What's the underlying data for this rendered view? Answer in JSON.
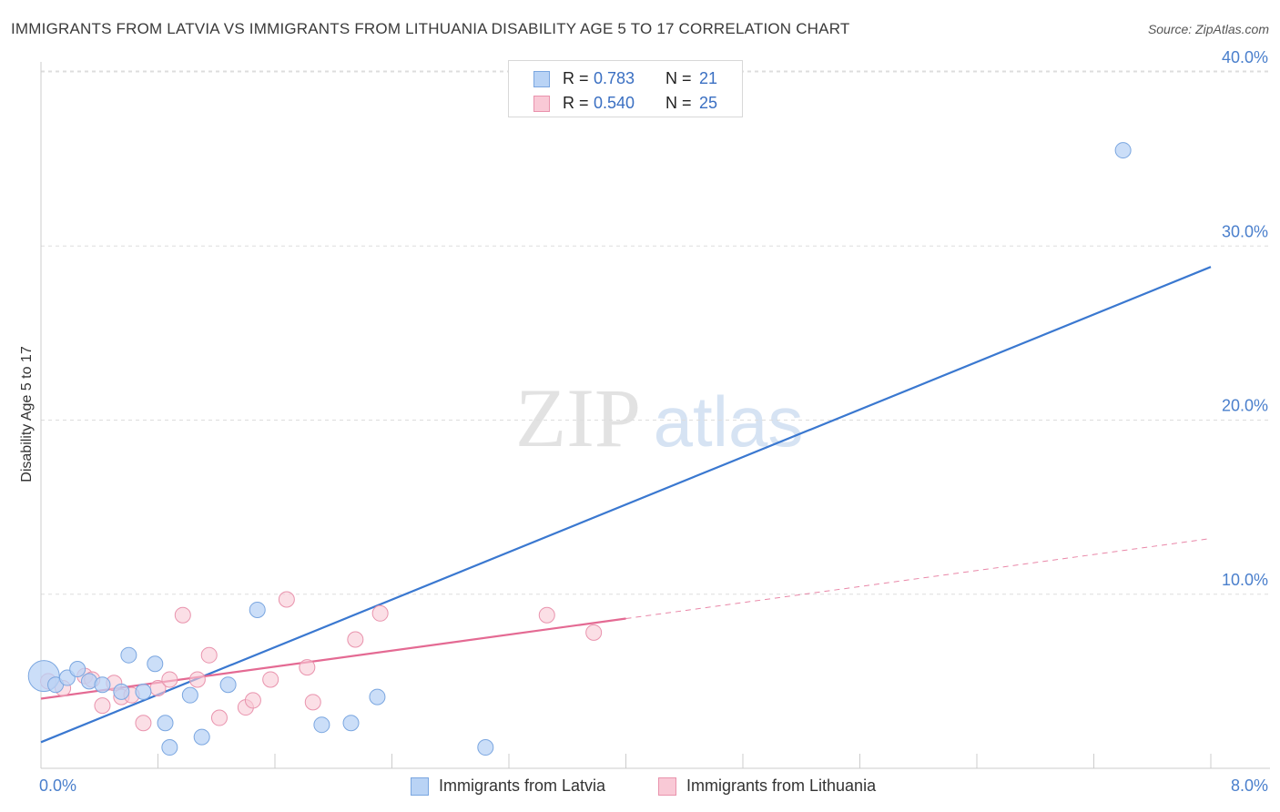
{
  "title": "IMMIGRANTS FROM LATVIA VS IMMIGRANTS FROM LITHUANIA DISABILITY AGE 5 TO 17 CORRELATION CHART",
  "source": "Source: ZipAtlas.com",
  "watermark": {
    "zip": "ZIP",
    "atlas": "atlas"
  },
  "legend": {
    "r_label": "R =",
    "n_label": "N =",
    "rows": [
      {
        "r": "0.783",
        "n": "21",
        "swatch_fill": "#b9d3f5",
        "swatch_stroke": "#7aa6e0"
      },
      {
        "r": "0.540",
        "n": "25",
        "swatch_fill": "#f9c9d6",
        "swatch_stroke": "#e993ad"
      }
    ]
  },
  "bottom_legend": [
    {
      "label": "Immigrants from Latvia",
      "fill": "#b9d3f5",
      "stroke": "#7aa6e0"
    },
    {
      "label": "Immigrants from Lithuania",
      "fill": "#f9c9d6",
      "stroke": "#e993ad"
    }
  ],
  "chart_data": {
    "type": "scatter",
    "title": "IMMIGRANTS FROM LATVIA VS IMMIGRANTS FROM LITHUANIA DISABILITY AGE 5 TO 17 CORRELATION CHART",
    "xlabel": "",
    "ylabel": "Disability Age 5 to 17",
    "xlim": [
      0,
      8
    ],
    "ylim": [
      0,
      41
    ],
    "x_tick_labels": [
      "0.0%",
      "8.0%"
    ],
    "y_ticks": [
      10,
      20,
      30,
      40
    ],
    "y_tick_labels": [
      "10.0%",
      "20.0%",
      "30.0%",
      "40.0%"
    ],
    "grid": "horizontal dashed",
    "legend_position": "top-center",
    "series": [
      {
        "name": "Immigrants from Latvia",
        "color": "#3a78d0",
        "point_fill": "#b9d3f5",
        "point_stroke": "#7aa6e0",
        "r": 0.783,
        "n": 21,
        "x": [
          0.02,
          0.1,
          0.18,
          0.25,
          0.33,
          0.42,
          0.55,
          0.6,
          0.7,
          0.78,
          0.85,
          0.88,
          1.02,
          1.1,
          1.28,
          1.48,
          1.92,
          2.12,
          2.3,
          3.04,
          7.4
        ],
        "y": [
          5.3,
          4.8,
          5.2,
          5.7,
          5.0,
          4.8,
          4.4,
          6.5,
          4.4,
          6.0,
          2.6,
          1.2,
          4.2,
          1.8,
          4.8,
          9.1,
          2.5,
          2.6,
          4.1,
          1.2,
          35.5
        ],
        "trend": {
          "x": [
            0,
            8
          ],
          "y": [
            1.5,
            28.8
          ]
        }
      },
      {
        "name": "Immigrants from Lithuania",
        "color": "#e46a93",
        "point_fill": "#f9c9d6",
        "point_stroke": "#e993ad",
        "r": 0.54,
        "n": 25,
        "x": [
          0.05,
          0.15,
          0.3,
          0.35,
          0.42,
          0.5,
          0.55,
          0.62,
          0.7,
          0.8,
          0.88,
          0.97,
          1.07,
          1.15,
          1.22,
          1.4,
          1.45,
          1.57,
          1.68,
          1.82,
          1.86,
          2.15,
          2.32,
          3.46,
          3.78
        ],
        "y": [
          5.0,
          4.6,
          5.3,
          5.1,
          3.6,
          4.9,
          4.1,
          4.2,
          2.6,
          4.6,
          5.1,
          8.8,
          5.1,
          6.5,
          2.9,
          3.5,
          3.9,
          5.1,
          9.7,
          5.8,
          3.8,
          7.4,
          8.9,
          8.8,
          7.8
        ],
        "trend": {
          "x": [
            0,
            4.0
          ],
          "y": [
            4.0,
            8.6
          ]
        },
        "trend_dashed": {
          "x": [
            4.0,
            8
          ],
          "y": [
            8.6,
            13.2
          ]
        }
      }
    ]
  }
}
